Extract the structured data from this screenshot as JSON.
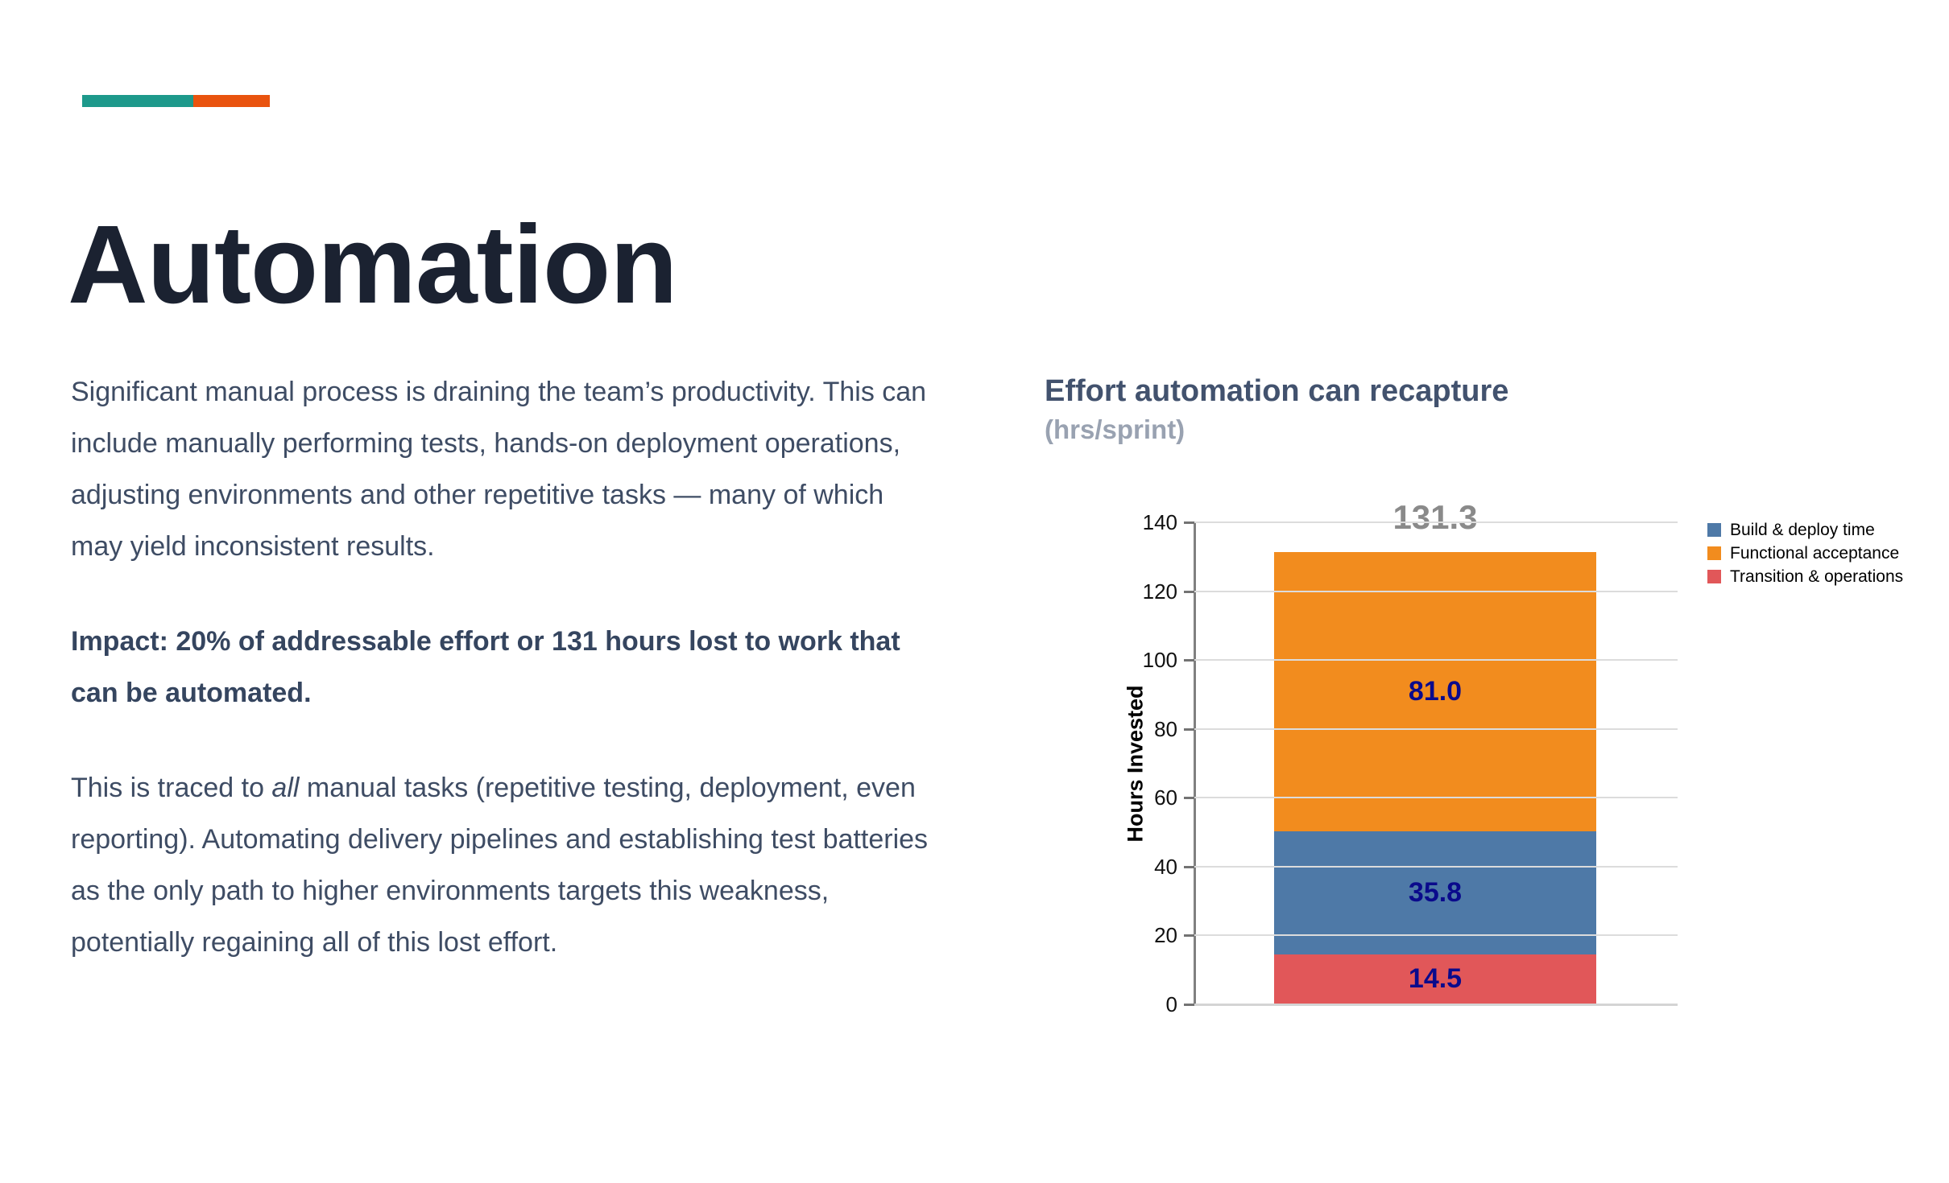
{
  "slide": {
    "title": "Automation",
    "accent_colors": {
      "teal": "#1D998B",
      "orange": "#E9530E"
    },
    "body": {
      "p1": "Significant manual process is draining the team’s productivity. This can include manually performing tests, hands-on deployment operations, adjusting environments and other repetitive tasks — many of which may yield inconsistent results.",
      "p2": "Impact: 20% of addressable effort or 131 hours lost to work that can be automated.",
      "p3_before": "This is traced to ",
      "p3_italic": "all",
      "p3_after": " manual tasks (repetitive testing, deployment, even reporting). Automating delivery pipelines and establishing test batteries as the only path to higher environments targets this weakness, potentially regaining all of this lost effort."
    }
  },
  "chart_data": {
    "type": "bar",
    "title": "Effort automation can recapture",
    "subtitle": "(hrs/sprint)",
    "ylabel": "Hours Invested",
    "xlabel": "",
    "categories": [
      ""
    ],
    "ylim": [
      0,
      140
    ],
    "ytick_step": 20,
    "grid": true,
    "legend_position": "right",
    "stacked": true,
    "series": [
      {
        "name": "Transition & operations",
        "values": [
          14.5
        ],
        "label": "14.5",
        "color": "#E15759"
      },
      {
        "name": "Build & deploy time",
        "values": [
          35.8
        ],
        "label": "35.8",
        "color": "#4E79A7"
      },
      {
        "name": "Functional acceptance",
        "values": [
          81.0
        ],
        "label": "81.0",
        "color": "#F28C1E"
      }
    ],
    "stack_order_note": "series listed bottom-to-top",
    "total": 131.3,
    "total_label": "131.3",
    "legend": [
      {
        "label": "Build & deploy time",
        "color": "#4E79A7"
      },
      {
        "label": "Functional acceptance",
        "color": "#F28C1E"
      },
      {
        "label": "Transition & operations",
        "color": "#E15759"
      }
    ],
    "value_label_color": "#0A0A8C",
    "total_label_color": "#8A8A8A"
  }
}
